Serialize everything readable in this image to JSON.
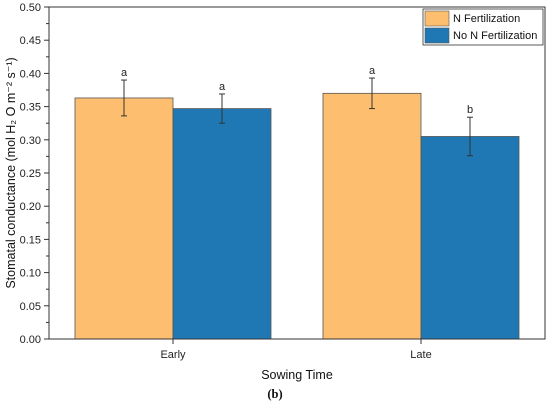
{
  "chart_data": {
    "type": "bar",
    "categories": [
      "Early",
      "Late"
    ],
    "series": [
      {
        "name": "N Fertilization",
        "color": "#FDBF6F",
        "values": [
          0.363,
          0.37
        ],
        "errors": [
          0.027,
          0.023
        ],
        "labels": [
          "a",
          "a"
        ]
      },
      {
        "name": "No N Fertilization",
        "color": "#1F78B4",
        "values": [
          0.347,
          0.305
        ],
        "errors": [
          0.022,
          0.029
        ],
        "labels": [
          "a",
          "b"
        ]
      }
    ],
    "title": "",
    "xlabel": "Sowing Time",
    "ylabel": "Stomatal conductance (mol H₂ O m⁻² s⁻¹)",
    "ylim": [
      0,
      0.5
    ],
    "yticks": [
      "0.00",
      "0.05",
      "0.10",
      "0.15",
      "0.20",
      "0.25",
      "0.30",
      "0.35",
      "0.40",
      "0.45",
      "0.50"
    ],
    "grid": false,
    "legend_position": "top-right"
  },
  "caption": "(b)"
}
